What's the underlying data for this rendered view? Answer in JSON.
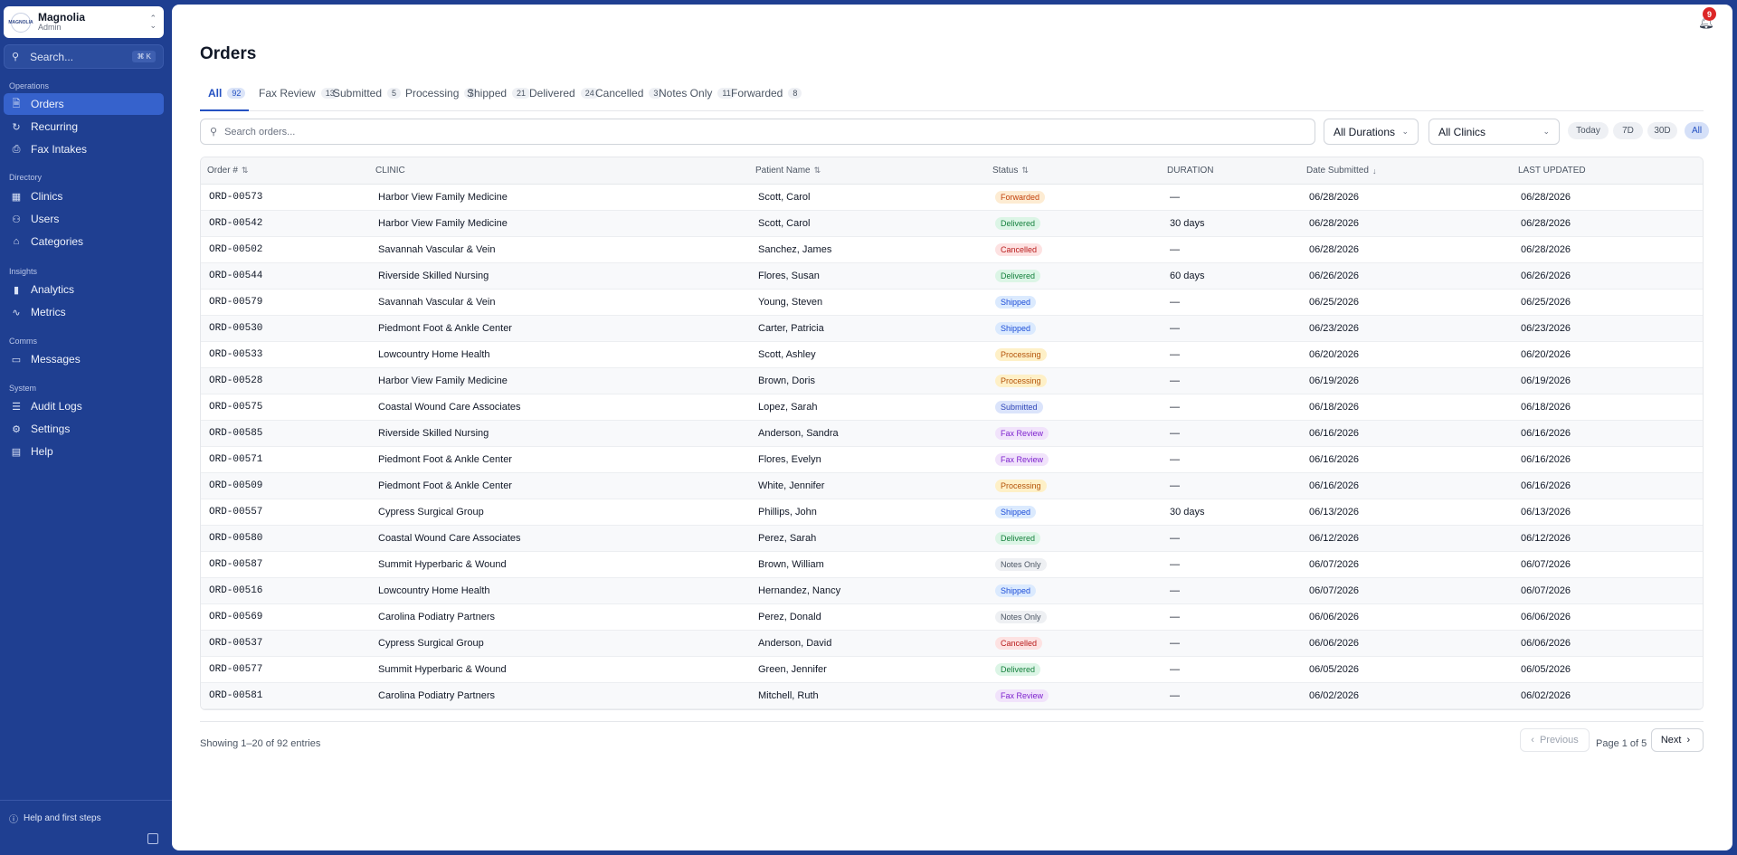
{
  "org": {
    "name": "Magnolia",
    "role": "Admin",
    "logo_text": "MAGNOLIA"
  },
  "sidebar": {
    "search_label": "Search...",
    "search_shortcut": "⌘ K",
    "sections": [
      {
        "label": "Operations",
        "items": [
          {
            "label": "Orders",
            "icon": "document-icon",
            "active": true
          },
          {
            "label": "Recurring",
            "icon": "refresh-icon"
          },
          {
            "label": "Fax Intakes",
            "icon": "printer-icon"
          }
        ]
      },
      {
        "label": "Directory",
        "items": [
          {
            "label": "Clinics",
            "icon": "building-icon"
          },
          {
            "label": "Users",
            "icon": "users-icon"
          },
          {
            "label": "Categories",
            "icon": "tag-icon"
          }
        ]
      },
      {
        "label": "Insights",
        "items": [
          {
            "label": "Analytics",
            "icon": "bar-chart-icon"
          },
          {
            "label": "Metrics",
            "icon": "activity-icon"
          }
        ]
      },
      {
        "label": "Comms",
        "items": [
          {
            "label": "Messages",
            "icon": "message-icon"
          }
        ]
      },
      {
        "label": "System",
        "items": [
          {
            "label": "Audit Logs",
            "icon": "file-list-icon"
          },
          {
            "label": "Settings",
            "icon": "gear-icon"
          },
          {
            "label": "Help",
            "icon": "book-icon"
          }
        ]
      }
    ],
    "help_first_steps": "Help and first steps"
  },
  "header": {
    "notification_count": "9"
  },
  "page": {
    "title": "Orders"
  },
  "tabs": [
    {
      "label": "All",
      "count": "92",
      "active": true
    },
    {
      "label": "Fax Review",
      "count": "13"
    },
    {
      "label": "Submitted",
      "count": "5"
    },
    {
      "label": "Processing",
      "count": "7"
    },
    {
      "label": "Shipped",
      "count": "21"
    },
    {
      "label": "Delivered",
      "count": "24"
    },
    {
      "label": "Cancelled",
      "count": "3"
    },
    {
      "label": "Notes Only",
      "count": "11"
    },
    {
      "label": "Forwarded",
      "count": "8"
    }
  ],
  "filters": {
    "search_placeholder": "Search orders...",
    "duration_select": "All Durations",
    "clinic_select": "All Clinics",
    "range_pills": [
      {
        "label": "Today"
      },
      {
        "label": "7D"
      },
      {
        "label": "30D"
      },
      {
        "label": "All",
        "active": true
      }
    ]
  },
  "table": {
    "columns": [
      "Order #",
      "CLINIC",
      "Patient Name",
      "Status",
      "DURATION",
      "Date Submitted",
      "LAST UPDATED"
    ],
    "rows": [
      {
        "order": "ORD-00573",
        "clinic": "Harbor View Family Medicine",
        "patient": "Scott, Carol",
        "status": "Forwarded",
        "duration": "—",
        "submitted": "06/28/2026",
        "updated": "06/28/2026"
      },
      {
        "order": "ORD-00542",
        "clinic": "Harbor View Family Medicine",
        "patient": "Scott, Carol",
        "status": "Delivered",
        "duration": "30 days",
        "submitted": "06/28/2026",
        "updated": "06/28/2026"
      },
      {
        "order": "ORD-00502",
        "clinic": "Savannah Vascular & Vein",
        "patient": "Sanchez, James",
        "status": "Cancelled",
        "duration": "—",
        "submitted": "06/28/2026",
        "updated": "06/28/2026"
      },
      {
        "order": "ORD-00544",
        "clinic": "Riverside Skilled Nursing",
        "patient": "Flores, Susan",
        "status": "Delivered",
        "duration": "60 days",
        "submitted": "06/26/2026",
        "updated": "06/26/2026"
      },
      {
        "order": "ORD-00579",
        "clinic": "Savannah Vascular & Vein",
        "patient": "Young, Steven",
        "status": "Shipped",
        "duration": "—",
        "submitted": "06/25/2026",
        "updated": "06/25/2026"
      },
      {
        "order": "ORD-00530",
        "clinic": "Piedmont Foot & Ankle Center",
        "patient": "Carter, Patricia",
        "status": "Shipped",
        "duration": "—",
        "submitted": "06/23/2026",
        "updated": "06/23/2026"
      },
      {
        "order": "ORD-00533",
        "clinic": "Lowcountry Home Health",
        "patient": "Scott, Ashley",
        "status": "Processing",
        "duration": "—",
        "submitted": "06/20/2026",
        "updated": "06/20/2026"
      },
      {
        "order": "ORD-00528",
        "clinic": "Harbor View Family Medicine",
        "patient": "Brown, Doris",
        "status": "Processing",
        "duration": "—",
        "submitted": "06/19/2026",
        "updated": "06/19/2026"
      },
      {
        "order": "ORD-00575",
        "clinic": "Coastal Wound Care Associates",
        "patient": "Lopez, Sarah",
        "status": "Submitted",
        "duration": "—",
        "submitted": "06/18/2026",
        "updated": "06/18/2026"
      },
      {
        "order": "ORD-00585",
        "clinic": "Riverside Skilled Nursing",
        "patient": "Anderson, Sandra",
        "status": "Fax Review",
        "duration": "—",
        "submitted": "06/16/2026",
        "updated": "06/16/2026"
      },
      {
        "order": "ORD-00571",
        "clinic": "Piedmont Foot & Ankle Center",
        "patient": "Flores, Evelyn",
        "status": "Fax Review",
        "duration": "—",
        "submitted": "06/16/2026",
        "updated": "06/16/2026"
      },
      {
        "order": "ORD-00509",
        "clinic": "Piedmont Foot & Ankle Center",
        "patient": "White, Jennifer",
        "status": "Processing",
        "duration": "—",
        "submitted": "06/16/2026",
        "updated": "06/16/2026"
      },
      {
        "order": "ORD-00557",
        "clinic": "Cypress Surgical Group",
        "patient": "Phillips, John",
        "status": "Shipped",
        "duration": "30 days",
        "submitted": "06/13/2026",
        "updated": "06/13/2026"
      },
      {
        "order": "ORD-00580",
        "clinic": "Coastal Wound Care Associates",
        "patient": "Perez, Sarah",
        "status": "Delivered",
        "duration": "—",
        "submitted": "06/12/2026",
        "updated": "06/12/2026"
      },
      {
        "order": "ORD-00587",
        "clinic": "Summit Hyperbaric & Wound",
        "patient": "Brown, William",
        "status": "Notes Only",
        "duration": "—",
        "submitted": "06/07/2026",
        "updated": "06/07/2026"
      },
      {
        "order": "ORD-00516",
        "clinic": "Lowcountry Home Health",
        "patient": "Hernandez, Nancy",
        "status": "Shipped",
        "duration": "—",
        "submitted": "06/07/2026",
        "updated": "06/07/2026"
      },
      {
        "order": "ORD-00569",
        "clinic": "Carolina Podiatry Partners",
        "patient": "Perez, Donald",
        "status": "Notes Only",
        "duration": "—",
        "submitted": "06/06/2026",
        "updated": "06/06/2026"
      },
      {
        "order": "ORD-00537",
        "clinic": "Cypress Surgical Group",
        "patient": "Anderson, David",
        "status": "Cancelled",
        "duration": "—",
        "submitted": "06/06/2026",
        "updated": "06/06/2026"
      },
      {
        "order": "ORD-00577",
        "clinic": "Summit Hyperbaric & Wound",
        "patient": "Green, Jennifer",
        "status": "Delivered",
        "duration": "—",
        "submitted": "06/05/2026",
        "updated": "06/05/2026"
      },
      {
        "order": "ORD-00581",
        "clinic": "Carolina Podiatry Partners",
        "patient": "Mitchell, Ruth",
        "status": "Fax Review",
        "duration": "—",
        "submitted": "06/02/2026",
        "updated": "06/02/2026"
      }
    ]
  },
  "status_colors": {
    "Forwarded": {
      "bg": "#fdecd3",
      "fg": "#c2410c"
    },
    "Delivered": {
      "bg": "#dcf5e6",
      "fg": "#15803d"
    },
    "Cancelled": {
      "bg": "#fde2e2",
      "fg": "#b91c1c"
    },
    "Shipped": {
      "bg": "#dbeafe",
      "fg": "#1d4ed8"
    },
    "Processing": {
      "bg": "#fef0c7",
      "fg": "#b45309"
    },
    "Submitted": {
      "bg": "#dbe4fb",
      "fg": "#3147b8"
    },
    "Fax Review": {
      "bg": "#f1e3fb",
      "fg": "#7e22ce"
    },
    "Notes Only": {
      "bg": "#eef0f3",
      "fg": "#4b5563"
    }
  },
  "pagination": {
    "showing": "Showing 1–20 of 92 entries",
    "previous": "Previous",
    "page_of": "Page 1 of 5",
    "next": "Next"
  }
}
